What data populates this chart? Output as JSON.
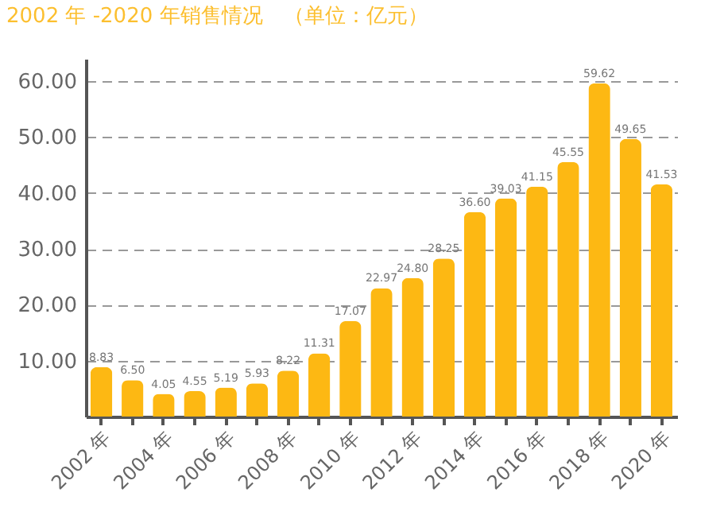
{
  "chart_data": {
    "type": "bar",
    "title": "2002 年 -2020 年销售情况　（单位：亿元）",
    "categories": [
      "2002 年",
      null,
      "2004 年",
      null,
      "2006 年",
      null,
      "2008 年",
      null,
      "2010 年",
      null,
      "2012 年",
      null,
      "2014 年",
      null,
      "2016 年",
      null,
      "2018 年",
      null,
      "2020 年"
    ],
    "values": [
      8.83,
      6.5,
      4.05,
      4.55,
      5.19,
      5.93,
      8.22,
      11.31,
      17.07,
      22.97,
      24.8,
      28.25,
      36.6,
      39.03,
      41.15,
      45.55,
      59.62,
      49.65,
      41.53
    ],
    "color": "#fdb813",
    "value_labels": [
      "8.83",
      "6.50",
      "4.05",
      "4.55",
      "5.19",
      "5.93",
      "8.22",
      "11.31",
      "17.07",
      "22.97",
      "24.80",
      "28.25",
      "36.60",
      "39.03",
      "41.15",
      "45.55",
      "59.62",
      "49.65",
      "41.53"
    ],
    "ylim": [
      0,
      64
    ],
    "yticks": [
      {
        "value": 10,
        "label": "10.00"
      },
      {
        "value": 20,
        "label": "20.00"
      },
      {
        "value": 30,
        "label": "30.00"
      },
      {
        "value": 40,
        "label": "40.00"
      },
      {
        "value": 50,
        "label": "50.00"
      },
      {
        "value": 60,
        "label": "60.00"
      }
    ],
    "grid": "y"
  }
}
